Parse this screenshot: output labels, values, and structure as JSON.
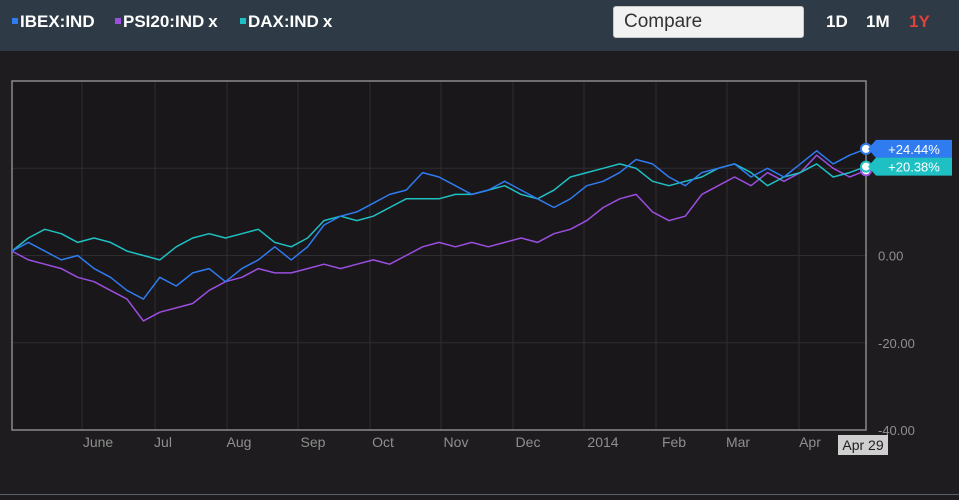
{
  "header": {
    "legend": [
      {
        "label": "IBEX:IND",
        "color": "#2f7bf0",
        "removable": false,
        "remove_label": ""
      },
      {
        "label": "PSI20:IND",
        "color": "#9b4ee0",
        "removable": true,
        "remove_label": "x"
      },
      {
        "label": "DAX:IND",
        "color": "#1fc0c4",
        "removable": true,
        "remove_label": "x"
      }
    ],
    "compare_placeholder": "Compare",
    "ranges": [
      {
        "label": "1D",
        "active": false
      },
      {
        "label": "1M",
        "active": false
      },
      {
        "label": "1Y",
        "active": true
      }
    ],
    "active_color": "#e0413a"
  },
  "chart_data": {
    "type": "line",
    "x_ticks": [
      "June",
      "Jul",
      "Aug",
      "Sep",
      "Oct",
      "Nov",
      "Dec",
      "2014",
      "Feb",
      "Mar",
      "Apr"
    ],
    "end_label": "Apr 29",
    "y_ticks": [
      "0.00",
      "-20.00",
      "-40.00"
    ],
    "ylim": [
      -40,
      40
    ],
    "grid": true,
    "series": [
      {
        "label": "IBEX:IND",
        "color": "#2f7bf0",
        "end_badge": "+24.44%",
        "points": [
          [
            "Apr 29",
            1
          ],
          [
            "May 6",
            3
          ],
          [
            "May 13",
            1
          ],
          [
            "May 20",
            -1
          ],
          [
            "May 27",
            0
          ],
          [
            "Jun 3",
            -3
          ],
          [
            "Jun 10",
            -5
          ],
          [
            "Jun 17",
            -8
          ],
          [
            "Jun 24",
            -10
          ],
          [
            "Jul 1",
            -5
          ],
          [
            "Jul 8",
            -7
          ],
          [
            "Jul 15",
            -4
          ],
          [
            "Jul 22",
            -3
          ],
          [
            "Jul 29",
            -6
          ],
          [
            "Aug 5",
            -3
          ],
          [
            "Aug 12",
            -1
          ],
          [
            "Aug 19",
            2
          ],
          [
            "Aug 26",
            -1
          ],
          [
            "Sep 2",
            2
          ],
          [
            "Sep 9",
            7
          ],
          [
            "Sep 16",
            9
          ],
          [
            "Sep 23",
            10
          ],
          [
            "Sep 30",
            12
          ],
          [
            "Oct 7",
            14
          ],
          [
            "Oct 14",
            15
          ],
          [
            "Oct 21",
            19
          ],
          [
            "Oct 28",
            18
          ],
          [
            "Nov 4",
            16
          ],
          [
            "Nov 11",
            14
          ],
          [
            "Nov 18",
            15
          ],
          [
            "Nov 25",
            17
          ],
          [
            "Dec 2",
            15
          ],
          [
            "Dec 9",
            13
          ],
          [
            "Dec 16",
            11
          ],
          [
            "Dec 23",
            13
          ],
          [
            "Dec 30",
            16
          ],
          [
            "Jan 6",
            17
          ],
          [
            "Jan 13",
            19
          ],
          [
            "Jan 20",
            22
          ],
          [
            "Jan 27",
            21
          ],
          [
            "Feb 3",
            18
          ],
          [
            "Feb 10",
            16
          ],
          [
            "Feb 17",
            19
          ],
          [
            "Feb 24",
            20
          ],
          [
            "Mar 3",
            21
          ],
          [
            "Mar 10",
            18
          ],
          [
            "Mar 17",
            20
          ],
          [
            "Mar 24",
            18
          ],
          [
            "Mar 31",
            21
          ],
          [
            "Apr 7",
            24
          ],
          [
            "Apr 14",
            21
          ],
          [
            "Apr 21",
            23
          ],
          [
            "Apr 29",
            24.44
          ]
        ]
      },
      {
        "label": "PSI20:IND",
        "color": "#9b4ee0",
        "end_badge": "",
        "points": [
          [
            "Apr 29",
            1
          ],
          [
            "May 6",
            -1
          ],
          [
            "May 13",
            -2
          ],
          [
            "May 20",
            -3
          ],
          [
            "May 27",
            -5
          ],
          [
            "Jun 3",
            -6
          ],
          [
            "Jun 10",
            -8
          ],
          [
            "Jun 17",
            -10
          ],
          [
            "Jun 24",
            -15
          ],
          [
            "Jul 1",
            -13
          ],
          [
            "Jul 8",
            -12
          ],
          [
            "Jul 15",
            -11
          ],
          [
            "Jul 22",
            -8
          ],
          [
            "Jul 29",
            -6
          ],
          [
            "Aug 5",
            -5
          ],
          [
            "Aug 12",
            -3
          ],
          [
            "Aug 19",
            -4
          ],
          [
            "Aug 26",
            -4
          ],
          [
            "Sep 2",
            -3
          ],
          [
            "Sep 9",
            -2
          ],
          [
            "Sep 16",
            -3
          ],
          [
            "Sep 23",
            -2
          ],
          [
            "Sep 30",
            -1
          ],
          [
            "Oct 7",
            -2
          ],
          [
            "Oct 14",
            0
          ],
          [
            "Oct 21",
            2
          ],
          [
            "Oct 28",
            3
          ],
          [
            "Nov 4",
            2
          ],
          [
            "Nov 11",
            3
          ],
          [
            "Nov 18",
            2
          ],
          [
            "Nov 25",
            3
          ],
          [
            "Dec 2",
            4
          ],
          [
            "Dec 9",
            3
          ],
          [
            "Dec 16",
            5
          ],
          [
            "Dec 23",
            6
          ],
          [
            "Dec 30",
            8
          ],
          [
            "Jan 6",
            11
          ],
          [
            "Jan 13",
            13
          ],
          [
            "Jan 20",
            14
          ],
          [
            "Jan 27",
            10
          ],
          [
            "Feb 3",
            8
          ],
          [
            "Feb 10",
            9
          ],
          [
            "Feb 17",
            14
          ],
          [
            "Feb 24",
            16
          ],
          [
            "Mar 3",
            18
          ],
          [
            "Mar 10",
            16
          ],
          [
            "Mar 17",
            19
          ],
          [
            "Mar 24",
            17
          ],
          [
            "Mar 31",
            19
          ],
          [
            "Apr 7",
            23
          ],
          [
            "Apr 14",
            20
          ],
          [
            "Apr 21",
            18
          ],
          [
            "Apr 29",
            19.5
          ]
        ]
      },
      {
        "label": "DAX:IND",
        "color": "#1fc0c4",
        "end_badge": "+20.38%",
        "points": [
          [
            "Apr 29",
            1
          ],
          [
            "May 6",
            4
          ],
          [
            "May 13",
            6
          ],
          [
            "May 20",
            5
          ],
          [
            "May 27",
            3
          ],
          [
            "Jun 3",
            4
          ],
          [
            "Jun 10",
            3
          ],
          [
            "Jun 17",
            1
          ],
          [
            "Jun 24",
            0
          ],
          [
            "Jul 1",
            -1
          ],
          [
            "Jul 8",
            2
          ],
          [
            "Jul 15",
            4
          ],
          [
            "Jul 22",
            5
          ],
          [
            "Jul 29",
            4
          ],
          [
            "Aug 5",
            5
          ],
          [
            "Aug 12",
            6
          ],
          [
            "Aug 19",
            3
          ],
          [
            "Aug 26",
            2
          ],
          [
            "Sep 2",
            4
          ],
          [
            "Sep 9",
            8
          ],
          [
            "Sep 16",
            9
          ],
          [
            "Sep 23",
            8
          ],
          [
            "Sep 30",
            9
          ],
          [
            "Oct 7",
            11
          ],
          [
            "Oct 14",
            13
          ],
          [
            "Oct 21",
            13
          ],
          [
            "Oct 28",
            13
          ],
          [
            "Nov 4",
            14
          ],
          [
            "Nov 11",
            14
          ],
          [
            "Nov 18",
            15
          ],
          [
            "Nov 25",
            16
          ],
          [
            "Dec 2",
            14
          ],
          [
            "Dec 9",
            13
          ],
          [
            "Dec 16",
            15
          ],
          [
            "Dec 23",
            18
          ],
          [
            "Dec 30",
            19
          ],
          [
            "Jan 6",
            20
          ],
          [
            "Jan 13",
            21
          ],
          [
            "Jan 20",
            20
          ],
          [
            "Jan 27",
            17
          ],
          [
            "Feb 3",
            16
          ],
          [
            "Feb 10",
            17
          ],
          [
            "Feb 17",
            18
          ],
          [
            "Feb 24",
            20
          ],
          [
            "Mar 3",
            21
          ],
          [
            "Mar 10",
            19
          ],
          [
            "Mar 17",
            16
          ],
          [
            "Mar 24",
            18
          ],
          [
            "Mar 31",
            19
          ],
          [
            "Apr 7",
            21
          ],
          [
            "Apr 14",
            18
          ],
          [
            "Apr 21",
            19
          ],
          [
            "Apr 29",
            20.38
          ]
        ]
      }
    ]
  }
}
